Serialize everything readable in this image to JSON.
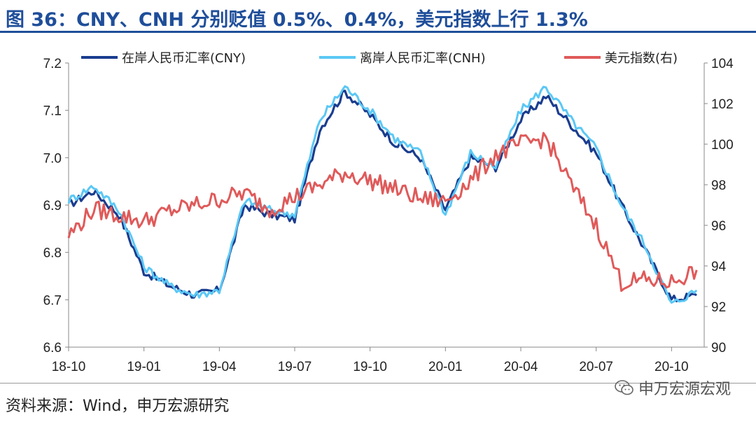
{
  "title": "图 36：CNY、CNH 分别贬值 0.5%、0.4%，美元指数上行 1.3%",
  "source": "资料来源：Wind，申万宏源研究",
  "watermark": "申万宏源宏观",
  "watermark_icon": "wechat-icon",
  "colors": {
    "title": "#1f4e9a",
    "cny": "#1a3d8f",
    "cnh": "#5bc8f5",
    "dxy": "#e05a5a"
  },
  "chart_data": {
    "type": "line",
    "x_ticks": [
      "18-10",
      "19-01",
      "19-04",
      "19-07",
      "19-10",
      "20-01",
      "20-04",
      "20-07",
      "20-10"
    ],
    "x_range": [
      "2018-10",
      "2020-11"
    ],
    "y_left": {
      "ticks": [
        "6.6",
        "6.7",
        "6.8",
        "6.9",
        "7.0",
        "7.1",
        "7.2"
      ],
      "range": [
        6.6,
        7.2
      ]
    },
    "y_right": {
      "ticks": [
        "90",
        "92",
        "94",
        "96",
        "98",
        "100",
        "102",
        "104"
      ],
      "range": [
        90,
        104
      ]
    },
    "legend_position": "top",
    "series": [
      {
        "name": "在岸人民币汇率(CNY)",
        "axis": "left",
        "x": [
          "2018-10",
          "2018-11",
          "2018-12",
          "2019-01",
          "2019-02",
          "2019-03",
          "2019-04",
          "2019-05",
          "2019-06",
          "2019-07",
          "2019-08",
          "2019-09",
          "2019-10",
          "2019-11",
          "2019-12",
          "2020-01",
          "2020-02",
          "2020-03",
          "2020-04",
          "2020-05",
          "2020-06",
          "2020-07",
          "2020-08",
          "2020-09",
          "2020-10",
          "2020-11"
        ],
        "values": [
          6.9,
          6.93,
          6.88,
          6.76,
          6.73,
          6.71,
          6.72,
          6.9,
          6.88,
          6.87,
          7.06,
          7.14,
          7.09,
          7.03,
          7.0,
          6.89,
          7.0,
          6.98,
          7.08,
          7.13,
          7.07,
          7.01,
          6.9,
          6.8,
          6.7,
          6.71
        ]
      },
      {
        "name": "离岸人民币汇率(CNH)",
        "axis": "left",
        "x": [
          "2018-10",
          "2018-11",
          "2018-12",
          "2019-01",
          "2019-02",
          "2019-03",
          "2019-04",
          "2019-05",
          "2019-06",
          "2019-07",
          "2019-08",
          "2019-09",
          "2019-10",
          "2019-11",
          "2019-12",
          "2020-01",
          "2020-02",
          "2020-03",
          "2020-04",
          "2020-05",
          "2020-06",
          "2020-07",
          "2020-08",
          "2020-09",
          "2020-10",
          "2020-11"
        ],
        "values": [
          6.91,
          6.94,
          6.89,
          6.77,
          6.73,
          6.71,
          6.72,
          6.91,
          6.89,
          6.88,
          7.08,
          7.15,
          7.1,
          7.04,
          7.01,
          6.88,
          7.01,
          6.98,
          7.1,
          7.15,
          7.08,
          7.02,
          6.9,
          6.81,
          6.69,
          6.72
        ]
      },
      {
        "name": "美元指数(右)",
        "axis": "right",
        "x": [
          "2018-10",
          "2018-11",
          "2018-12",
          "2019-01",
          "2019-02",
          "2019-03",
          "2019-04",
          "2019-05",
          "2019-06",
          "2019-07",
          "2019-08",
          "2019-09",
          "2019-10",
          "2019-11",
          "2019-12",
          "2020-01",
          "2020-02",
          "2020-03",
          "2020-04",
          "2020-05",
          "2020-06",
          "2020-07",
          "2020-08",
          "2020-09",
          "2020-10",
          "2020-11"
        ],
        "values": [
          95.5,
          96.8,
          96.5,
          96.2,
          96.7,
          97.0,
          97.3,
          97.6,
          96.8,
          97.4,
          98.0,
          98.6,
          98.2,
          97.8,
          97.3,
          97.2,
          98.2,
          99.5,
          100.0,
          100.3,
          98.0,
          96.0,
          93.2,
          93.3,
          93.2,
          93.8
        ]
      }
    ]
  }
}
